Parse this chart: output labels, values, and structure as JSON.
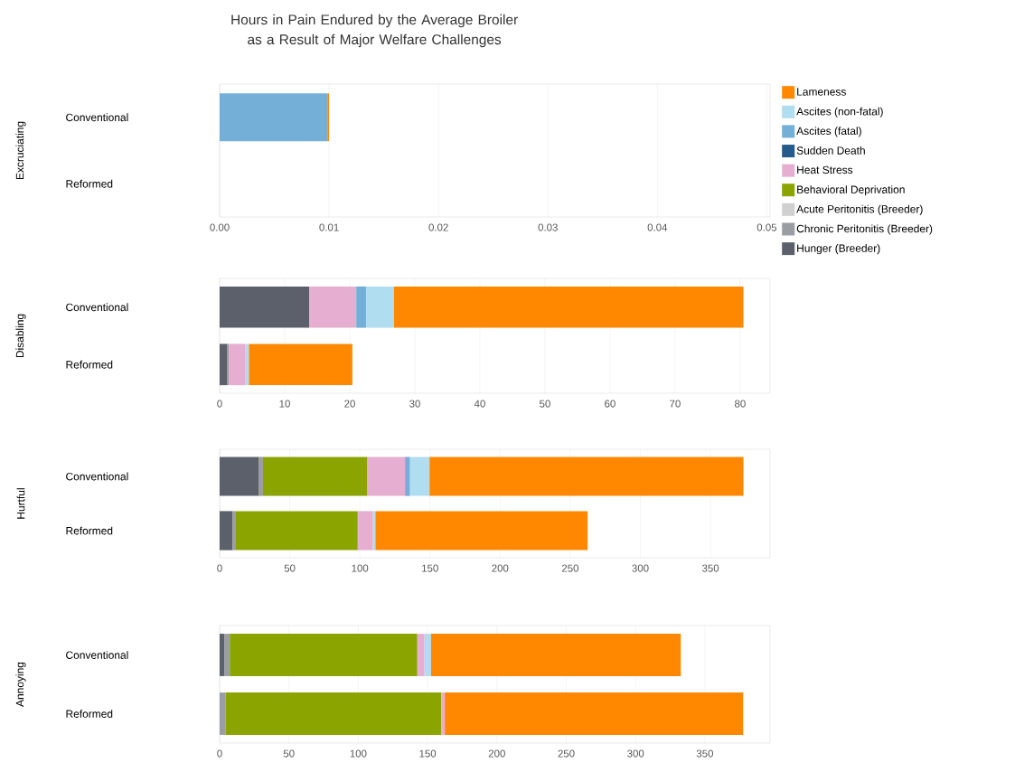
{
  "chart_data": [
    {
      "type": "bar",
      "orientation": "horizontal",
      "stacked": true,
      "title": "Hours in Pain Endured by the Average Broiler as a Result of Major Welfare Challenges",
      "ylabel": "Excruciating",
      "categories": [
        "Conventional",
        "Reformed"
      ],
      "xlim": [
        0,
        0.0503
      ],
      "xticks": [
        {
          "value": 0,
          "label": "0.00"
        },
        {
          "value": 0.01,
          "label": "0.01"
        },
        {
          "value": 0.02,
          "label": "0.02"
        },
        {
          "value": 0.03,
          "label": "0.03"
        },
        {
          "value": 0.04,
          "label": "0.04"
        },
        {
          "value": 0.05,
          "label": "0.05"
        }
      ],
      "grid": "x",
      "legend": "right",
      "series": [
        {
          "name": "Hunger (Breeder)",
          "color": "#5c606b",
          "values": [
            null,
            null
          ]
        },
        {
          "name": "Chronic Peritonitis (Breeder)",
          "color": "#9a9da2",
          "values": [
            null,
            null
          ]
        },
        {
          "name": "Acute Peritonitis (Breeder)",
          "color": "#d0d0d0",
          "values": [
            null,
            null
          ]
        },
        {
          "name": "Behavioral Deprivation",
          "color": "#8ca400",
          "values": [
            null,
            null
          ]
        },
        {
          "name": "Heat Stress",
          "color": "#e6aed0",
          "values": [
            null,
            null
          ]
        },
        {
          "name": "Sudden Death",
          "color": "#255a8c",
          "values": [
            null,
            null
          ]
        },
        {
          "name": "Ascites (fatal)",
          "color": "#74afd8",
          "values": [
            0.0099,
            null
          ]
        },
        {
          "name": "Ascites (non-fatal)",
          "color": "#b0ddf0",
          "values": [
            null,
            null
          ]
        },
        {
          "name": "Lameness",
          "color": "#ff8800",
          "values": [
            0.0001,
            null
          ]
        }
      ]
    },
    {
      "type": "bar",
      "orientation": "horizontal",
      "stacked": true,
      "ylabel": "Disabling",
      "categories": [
        "Conventional",
        "Reformed"
      ],
      "xlim": [
        0,
        84.6
      ],
      "xticks": [
        0,
        10,
        20,
        30,
        40,
        50,
        60,
        70,
        80
      ],
      "grid": "x",
      "series": [
        {
          "color": "#5c606b",
          "values": [
            13.8,
            1.2
          ]
        },
        {
          "color": "#9a9da2",
          "values": [
            null,
            0.2
          ]
        },
        {
          "color": "#d0d0d0",
          "values": [
            null,
            null
          ]
        },
        {
          "color": "#8ca400",
          "values": [
            null,
            null
          ]
        },
        {
          "color": "#e6aed0",
          "values": [
            7.2,
            2.5
          ]
        },
        {
          "color": "#255a8c",
          "values": [
            null,
            null
          ]
        },
        {
          "color": "#74afd8",
          "values": [
            1.5,
            null
          ]
        },
        {
          "color": "#b0ddf0",
          "values": [
            4.3,
            0.6
          ]
        },
        {
          "color": "#ff8800",
          "values": [
            53.7,
            15.9
          ]
        }
      ]
    },
    {
      "type": "bar",
      "orientation": "horizontal",
      "stacked": true,
      "ylabel": "Hurtful",
      "categories": [
        "Conventional",
        "Reformed"
      ],
      "xlim": [
        0,
        392.5
      ],
      "xticks": [
        0,
        50,
        100,
        150,
        200,
        250,
        300,
        350
      ],
      "grid": "x",
      "series": [
        {
          "color": "#5c606b",
          "values": [
            28.1,
            9.3
          ]
        },
        {
          "color": "#9a9da2",
          "values": [
            2.8,
            1.8
          ]
        },
        {
          "color": "#d0d0d0",
          "values": [
            null,
            null
          ]
        },
        {
          "color": "#8ca400",
          "values": [
            74.5,
            87.4
          ]
        },
        {
          "color": "#e6aed0",
          "values": [
            26.8,
            10.8
          ]
        },
        {
          "color": "#255a8c",
          "values": [
            null,
            null
          ]
        },
        {
          "color": "#74afd8",
          "values": [
            3.6,
            null
          ]
        },
        {
          "color": "#b0ddf0",
          "values": [
            13.9,
            1.8
          ]
        },
        {
          "color": "#ff8800",
          "values": [
            223.8,
            151.3
          ]
        }
      ]
    },
    {
      "type": "bar",
      "orientation": "horizontal",
      "stacked": true,
      "ylabel": "Annoying",
      "categories": [
        "Conventional",
        "Reformed"
      ],
      "xlim": [
        0,
        397
      ],
      "xticks": [
        0,
        50,
        100,
        150,
        200,
        250,
        300,
        350
      ],
      "grid": "x",
      "series": [
        {
          "color": "#5c606b",
          "values": [
            3.6,
            null
          ]
        },
        {
          "color": "#9a9da2",
          "values": [
            3.7,
            4.2
          ]
        },
        {
          "color": "#d0d0d0",
          "values": [
            null,
            null
          ]
        },
        {
          "color": "#8ca400",
          "values": [
            135.3,
            155.6
          ]
        },
        {
          "color": "#e6aed0",
          "values": [
            5.2,
            2.6
          ]
        },
        {
          "color": "#255a8c",
          "values": [
            null,
            null
          ]
        },
        {
          "color": "#74afd8",
          "values": [
            null,
            null
          ]
        },
        {
          "color": "#b0ddf0",
          "values": [
            4.7,
            null
          ]
        },
        {
          "color": "#ff8800",
          "values": [
            180.1,
            215.2
          ]
        }
      ]
    }
  ]
}
